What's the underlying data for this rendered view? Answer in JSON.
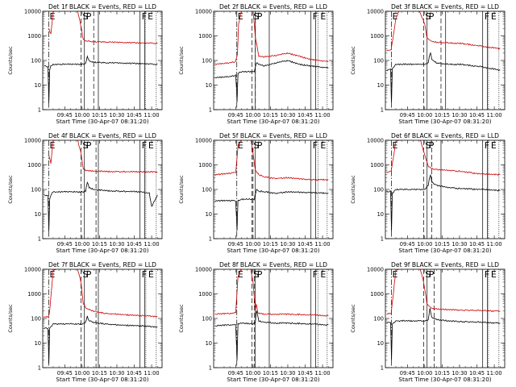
{
  "figure": {
    "ylabel": "Counts/sec",
    "xlabel": "Start Time (30-Apr-07 08:31:20)",
    "y_ticks": [
      "1",
      "10",
      "100",
      "1000",
      "10000"
    ],
    "x_ticks": [
      "09:45",
      "10:00",
      "10:15",
      "10:30",
      "10:45",
      "11:00"
    ],
    "colors": {
      "events": "#000000",
      "lld": "#cc0000"
    }
  },
  "chart_data": [
    {
      "type": "line",
      "title": "Det 1f BLACK = Events, RED = LLD",
      "markers": [
        "E",
        "S",
        "P",
        "F",
        "E"
      ],
      "scale": "log",
      "ylim": [
        1,
        10000
      ],
      "x_unit": "minutes from 09:30",
      "xlim": [
        -4,
        99
      ],
      "lines": {
        "dashdot": 1.2,
        "dashed": [
          29,
          40
        ],
        "solid": [
          32,
          44
        ],
        "solid2": [
          80,
          84
        ],
        "dotted": 84.5,
        "dotted2": [
          94
        ]
      },
      "series": [
        {
          "name": "LLD",
          "color": "#cc0000",
          "x": [
            1.2,
            3,
            5,
            8,
            18,
            26,
            29,
            31,
            33,
            36,
            40,
            50,
            60,
            80,
            95
          ],
          "y": [
            2000,
            1200,
            9500,
            11000,
            11000,
            11000,
            2500,
            700,
            620,
            600,
            580,
            560,
            550,
            520,
            500
          ]
        },
        {
          "name": "Events",
          "color": "#000000",
          "x": [
            -3,
            0.5,
            1.1,
            1.3,
            2,
            3,
            5,
            30,
            33,
            34.5,
            36,
            40,
            50,
            60,
            80,
            95
          ],
          "y": [
            60,
            55,
            5,
            2,
            40,
            60,
            70,
            70,
            75,
            140,
            95,
            85,
            80,
            80,
            75,
            70
          ]
        }
      ]
    },
    {
      "type": "line",
      "title": "Det 2f BLACK = Events, RED = LLD",
      "markers": [
        "E",
        "S",
        "P",
        "F",
        "E"
      ],
      "scale": "log",
      "ylim": [
        1,
        10000
      ],
      "x_unit": "minutes from 09:30",
      "xlim": [
        -4,
        99
      ],
      "lines": {
        "dashdot": 16,
        "dashed": [
          29,
          32
        ],
        "solid": [
          32,
          44
        ],
        "solid2": [
          80,
          84
        ],
        "dotted": 86,
        "dotted2": [
          94
        ]
      },
      "series": [
        {
          "name": "LLD",
          "color": "#cc0000",
          "x": [
            -3,
            10,
            15,
            16.5,
            17.5,
            20,
            30,
            32,
            35,
            40,
            50,
            60,
            70,
            80,
            95
          ],
          "y": [
            70,
            80,
            90,
            180,
            3000,
            11000,
            11000,
            900,
            150,
            140,
            160,
            200,
            150,
            110,
            90
          ]
        },
        {
          "name": "Events",
          "color": "#000000",
          "x": [
            -3,
            10,
            15,
            15.8,
            16.2,
            17,
            20,
            31,
            33,
            35,
            40,
            50,
            60,
            70,
            80,
            95
          ],
          "y": [
            20,
            22,
            25,
            6,
            2,
            30,
            35,
            35,
            80,
            70,
            60,
            80,
            100,
            70,
            60,
            50
          ]
        }
      ]
    },
    {
      "type": "line",
      "title": "Det 3f BLACK = Events, RED = LLD",
      "markers": [
        "E",
        "S",
        "P",
        "F",
        "E"
      ],
      "scale": "log",
      "ylim": [
        1,
        10000
      ],
      "x_unit": "minutes from 09:30",
      "xlim": [
        -4,
        99
      ],
      "lines": {
        "dashdot": 1.2,
        "dashed": [
          29,
          44
        ],
        "solid": [
          32,
          48
        ],
        "solid2": [
          80,
          84
        ],
        "dotted": 85,
        "dotted2": [
          94
        ]
      },
      "series": [
        {
          "name": "LLD",
          "color": "#cc0000",
          "x": [
            -3,
            1,
            5,
            8,
            25,
            30,
            32,
            36,
            40,
            50,
            60,
            80,
            95
          ],
          "y": [
            250,
            270,
            5000,
            11000,
            11000,
            3000,
            800,
            600,
            550,
            520,
            500,
            380,
            300
          ]
        },
        {
          "name": "Events",
          "color": "#000000",
          "x": [
            -3,
            0.5,
            1.1,
            1.3,
            2,
            5,
            30,
            33,
            34,
            35,
            36,
            40,
            50,
            60,
            80,
            95
          ],
          "y": [
            40,
            45,
            3,
            2,
            45,
            70,
            70,
            80,
            150,
            200,
            110,
            80,
            70,
            70,
            55,
            40
          ]
        }
      ]
    },
    {
      "type": "line",
      "title": "Det 4f BLACK = Events, RED = LLD",
      "markers": [
        "E",
        "S",
        "P",
        "F",
        "E"
      ],
      "scale": "log",
      "ylim": [
        1,
        10000
      ],
      "x_unit": "minutes from 09:30",
      "xlim": [
        -4,
        99
      ],
      "lines": {
        "dashdot": 1.2,
        "dashed": [
          29,
          42
        ],
        "solid": [
          32,
          44
        ],
        "solid2": [
          80,
          84
        ],
        "dotted": 85,
        "dotted2": [
          94
        ]
      },
      "series": [
        {
          "name": "LLD",
          "color": "#cc0000",
          "x": [
            1.2,
            3,
            5,
            8,
            20,
            26,
            29,
            31,
            33,
            36,
            40,
            50,
            60,
            80,
            95
          ],
          "y": [
            2500,
            1200,
            9500,
            11000,
            11000,
            11000,
            3000,
            700,
            600,
            580,
            560,
            540,
            530,
            520,
            520
          ]
        },
        {
          "name": "Events",
          "color": "#000000",
          "x": [
            -3,
            0.5,
            1.1,
            1.3,
            2,
            3,
            5,
            30,
            33,
            34.5,
            36,
            40,
            50,
            60,
            80,
            88,
            90,
            95
          ],
          "y": [
            60,
            55,
            5,
            2,
            40,
            60,
            80,
            80,
            85,
            200,
            120,
            100,
            90,
            85,
            80,
            70,
            20,
            60
          ]
        }
      ]
    },
    {
      "type": "line",
      "title": "Det 5f BLACK = Events, RED = LLD",
      "markers": [
        "E",
        "S",
        "P",
        "F",
        "E"
      ],
      "scale": "log",
      "ylim": [
        1,
        10000
      ],
      "x_unit": "minutes from 09:30",
      "xlim": [
        -4,
        99
      ],
      "lines": {
        "dashdot": 16,
        "dashed": [
          29,
          30
        ],
        "solid": [
          32,
          44
        ],
        "solid2": [
          80,
          84
        ],
        "dotted": 86,
        "dotted2": [
          94
        ]
      },
      "series": [
        {
          "name": "LLD",
          "color": "#cc0000",
          "x": [
            -3,
            10,
            15,
            16,
            17,
            20,
            28,
            30,
            32,
            35,
            40,
            50,
            60,
            80,
            95
          ],
          "y": [
            400,
            450,
            500,
            1500,
            6000,
            11000,
            11000,
            3000,
            600,
            400,
            320,
            280,
            300,
            250,
            250
          ]
        },
        {
          "name": "Events",
          "color": "#000000",
          "x": [
            -3,
            10,
            15,
            15.8,
            16.2,
            17,
            20,
            31,
            33,
            35,
            40,
            50,
            60,
            80,
            95
          ],
          "y": [
            35,
            35,
            35,
            6,
            2,
            35,
            40,
            40,
            100,
            85,
            80,
            70,
            80,
            75,
            70
          ]
        }
      ]
    },
    {
      "type": "line",
      "title": "Det 6f BLACK = Events, RED = LLD",
      "markers": [
        "E",
        "S",
        "P",
        "F",
        "E"
      ],
      "scale": "log",
      "ylim": [
        1,
        10000
      ],
      "x_unit": "minutes from 09:30",
      "xlim": [
        -4,
        99
      ],
      "lines": {
        "dashdot": 1.2,
        "dashed": [
          29,
          36
        ],
        "solid": [
          32,
          44
        ],
        "solid2": [
          80,
          84
        ],
        "dotted": 85,
        "dotted2": [
          94
        ]
      },
      "series": [
        {
          "name": "LLD",
          "color": "#cc0000",
          "x": [
            -3,
            1,
            5,
            10,
            20,
            26,
            30,
            33,
            36,
            40,
            50,
            60,
            80,
            95
          ],
          "y": [
            500,
            550,
            9000,
            11000,
            11000,
            11000,
            2500,
            900,
            700,
            650,
            600,
            550,
            420,
            400
          ]
        },
        {
          "name": "Events",
          "color": "#000000",
          "x": [
            -3,
            0.5,
            1.1,
            1.3,
            2,
            5,
            30,
            33,
            34,
            35,
            36,
            40,
            50,
            60,
            80,
            95
          ],
          "y": [
            80,
            85,
            5,
            2,
            70,
            100,
            100,
            150,
            300,
            400,
            200,
            150,
            120,
            110,
            100,
            90
          ]
        }
      ]
    },
    {
      "type": "line",
      "title": "Det 7f BLACK = Events, RED = LLD",
      "markers": [
        "E",
        "S",
        "P",
        "F",
        "E"
      ],
      "scale": "log",
      "ylim": [
        1,
        10000
      ],
      "x_unit": "minutes from 09:30",
      "xlim": [
        -4,
        99
      ],
      "lines": {
        "dashdot": 1.2,
        "dashed": [
          29,
          42
        ],
        "solid": [
          32,
          44
        ],
        "solid2": [
          80,
          84
        ],
        "dotted": 85,
        "dotted2": [
          94
        ]
      },
      "series": [
        {
          "name": "LLD",
          "color": "#cc0000",
          "x": [
            -3,
            1,
            2,
            5,
            10,
            20,
            26,
            29,
            31,
            34,
            40,
            50,
            60,
            80,
            95
          ],
          "y": [
            110,
            120,
            200,
            9000,
            11000,
            11000,
            11000,
            3000,
            400,
            250,
            200,
            160,
            150,
            130,
            120
          ]
        },
        {
          "name": "Events",
          "color": "#000000",
          "x": [
            -3,
            0.5,
            1.1,
            1.3,
            2,
            5,
            30,
            33,
            34.5,
            36,
            40,
            50,
            60,
            80,
            95
          ],
          "y": [
            40,
            40,
            4,
            1.5,
            40,
            60,
            60,
            70,
            120,
            80,
            70,
            60,
            55,
            50,
            45
          ]
        }
      ]
    },
    {
      "type": "line",
      "title": "Det 8f BLACK = Events, RED = LLD",
      "markers": [
        "E",
        "S",
        "P",
        "F",
        "E"
      ],
      "scale": "log",
      "ylim": [
        1,
        10000
      ],
      "x_unit": "minutes from 09:30",
      "xlim": [
        -4,
        99
      ],
      "lines": {
        "dashdot": 16,
        "dashed": [
          29,
          31
        ],
        "solid": [
          32,
          44
        ],
        "solid2": [
          80,
          84
        ],
        "dotted": 86,
        "dotted2": [
          94
        ]
      },
      "series": [
        {
          "name": "LLD",
          "color": "#cc0000",
          "x": [
            -3,
            10,
            15,
            16,
            17,
            20,
            28,
            30,
            32,
            33,
            34,
            36,
            40,
            50,
            60,
            80,
            95
          ],
          "y": [
            150,
            160,
            170,
            800,
            5000,
            11000,
            11000,
            3000,
            200,
            400,
            180,
            160,
            150,
            150,
            150,
            140,
            130
          ]
        },
        {
          "name": "Events",
          "color": "#000000",
          "x": [
            -3,
            10,
            15,
            15.8,
            16.2,
            17,
            20,
            31,
            32,
            33,
            35,
            40,
            50,
            60,
            80,
            95
          ],
          "y": [
            50,
            55,
            55,
            6,
            2,
            60,
            65,
            60,
            70,
            220,
            80,
            70,
            65,
            65,
            60,
            55
          ]
        }
      ]
    },
    {
      "type": "line",
      "title": "Det 9f BLACK = Events, RED = LLD",
      "markers": [
        "E",
        "S",
        "P",
        "F",
        "E"
      ],
      "scale": "log",
      "ylim": [
        1,
        10000
      ],
      "x_unit": "minutes from 09:30",
      "xlim": [
        -4,
        99
      ],
      "lines": {
        "dashdot": 1.2,
        "dashed": [
          29,
          38
        ],
        "solid": [
          32,
          44
        ],
        "solid2": [
          80,
          84
        ],
        "dotted": 85,
        "dotted2": [
          94
        ]
      },
      "series": [
        {
          "name": "LLD",
          "color": "#cc0000",
          "x": [
            -3,
            1,
            5,
            10,
            20,
            26,
            29,
            32,
            34,
            36,
            40,
            50,
            60,
            80,
            95
          ],
          "y": [
            150,
            160,
            9000,
            11000,
            11000,
            11000,
            3000,
            400,
            300,
            260,
            240,
            230,
            220,
            210,
            200
          ]
        },
        {
          "name": "Events",
          "color": "#000000",
          "x": [
            -3,
            0.5,
            1.1,
            1.3,
            2,
            5,
            30,
            33,
            34.5,
            36,
            40,
            50,
            60,
            80,
            95
          ],
          "y": [
            70,
            70,
            5,
            2,
            60,
            80,
            80,
            90,
            250,
            110,
            90,
            80,
            75,
            70,
            65
          ]
        }
      ]
    }
  ]
}
